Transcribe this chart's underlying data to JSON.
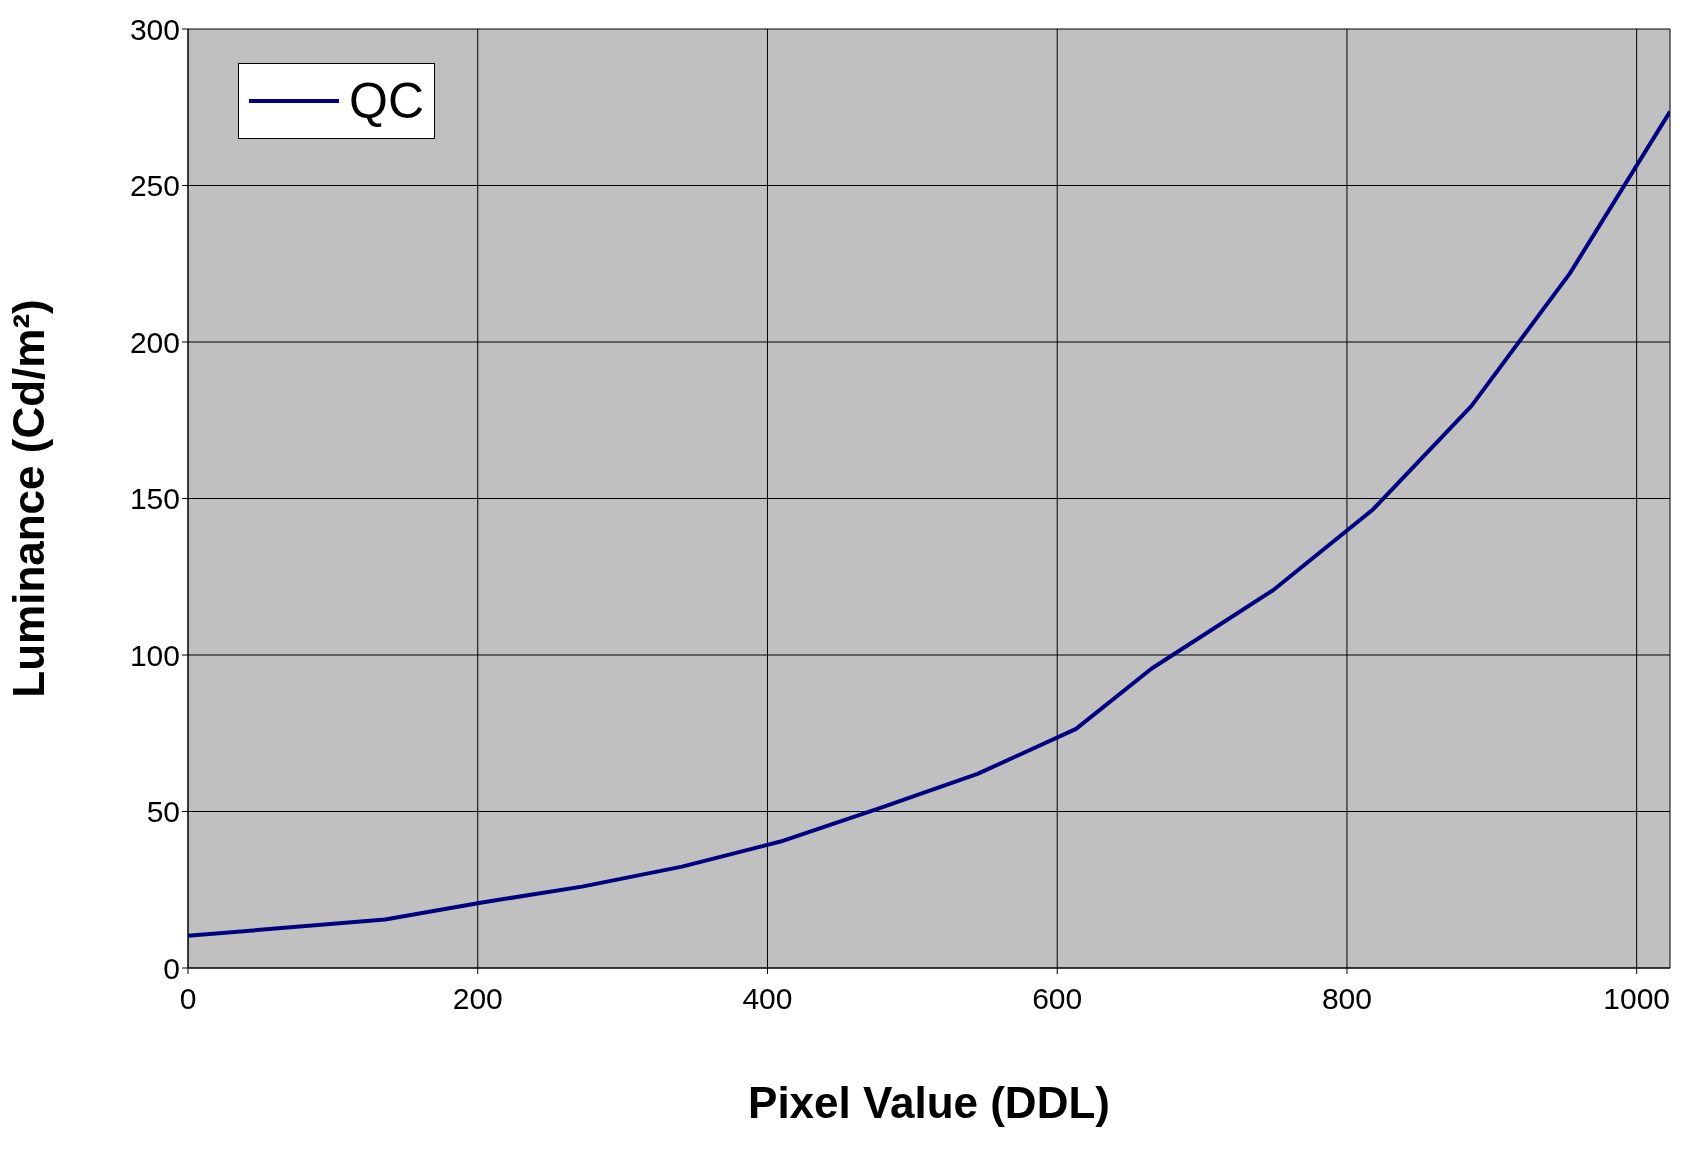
{
  "chart_data": {
    "type": "line",
    "xlabel": "Pixel Value (DDL)",
    "ylabel": "Luminance (Cd/m²)",
    "x": [
      0,
      136,
      204,
      272,
      341,
      409,
      477,
      545,
      613,
      665,
      749,
      818,
      886,
      954,
      1023
    ],
    "series": [
      {
        "name": "QC",
        "color": "#000080",
        "values": [
          10.3,
          15.5,
          21,
          26,
          32.4,
          40.4,
          51,
          62,
          76.4,
          95.6,
          120.7,
          146.5,
          179.6,
          222,
          273.6
        ]
      }
    ],
    "xlim": [
      0,
      1023
    ],
    "xticks": [
      0,
      200,
      400,
      600,
      800,
      1000
    ],
    "ylim": [
      0,
      300
    ],
    "yticks": [
      0,
      50,
      100,
      150,
      200,
      250,
      300
    ],
    "grid": true,
    "legend": "top left",
    "marker": "none",
    "line_style": "solid"
  }
}
